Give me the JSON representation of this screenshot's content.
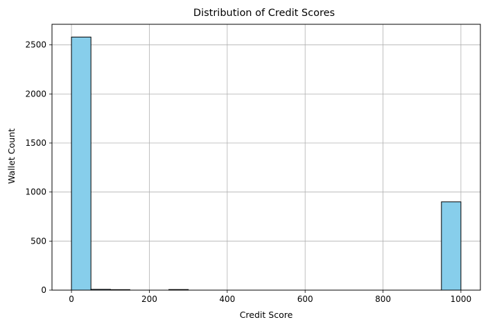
{
  "chart_data": {
    "type": "bar",
    "title": "Distribution of Credit Scores",
    "xlabel": "Credit Score",
    "ylabel": "Wallet Count",
    "xlim": [
      -50,
      1050
    ],
    "ylim": [
      0,
      2710
    ],
    "xticks": [
      0,
      200,
      400,
      600,
      800,
      1000
    ],
    "yticks": [
      0,
      500,
      1000,
      1500,
      2000,
      2500
    ],
    "bin_edges": [
      0,
      50,
      100,
      150,
      200,
      250,
      300,
      350,
      400,
      450,
      500,
      550,
      600,
      650,
      700,
      750,
      800,
      850,
      900,
      950,
      1000
    ],
    "values": [
      2580,
      8,
      5,
      0,
      0,
      6,
      0,
      0,
      0,
      0,
      0,
      0,
      0,
      0,
      0,
      0,
      0,
      0,
      0,
      900
    ],
    "bar_color": "#87ceeb",
    "edge_color": "#000000",
    "grid": true
  }
}
